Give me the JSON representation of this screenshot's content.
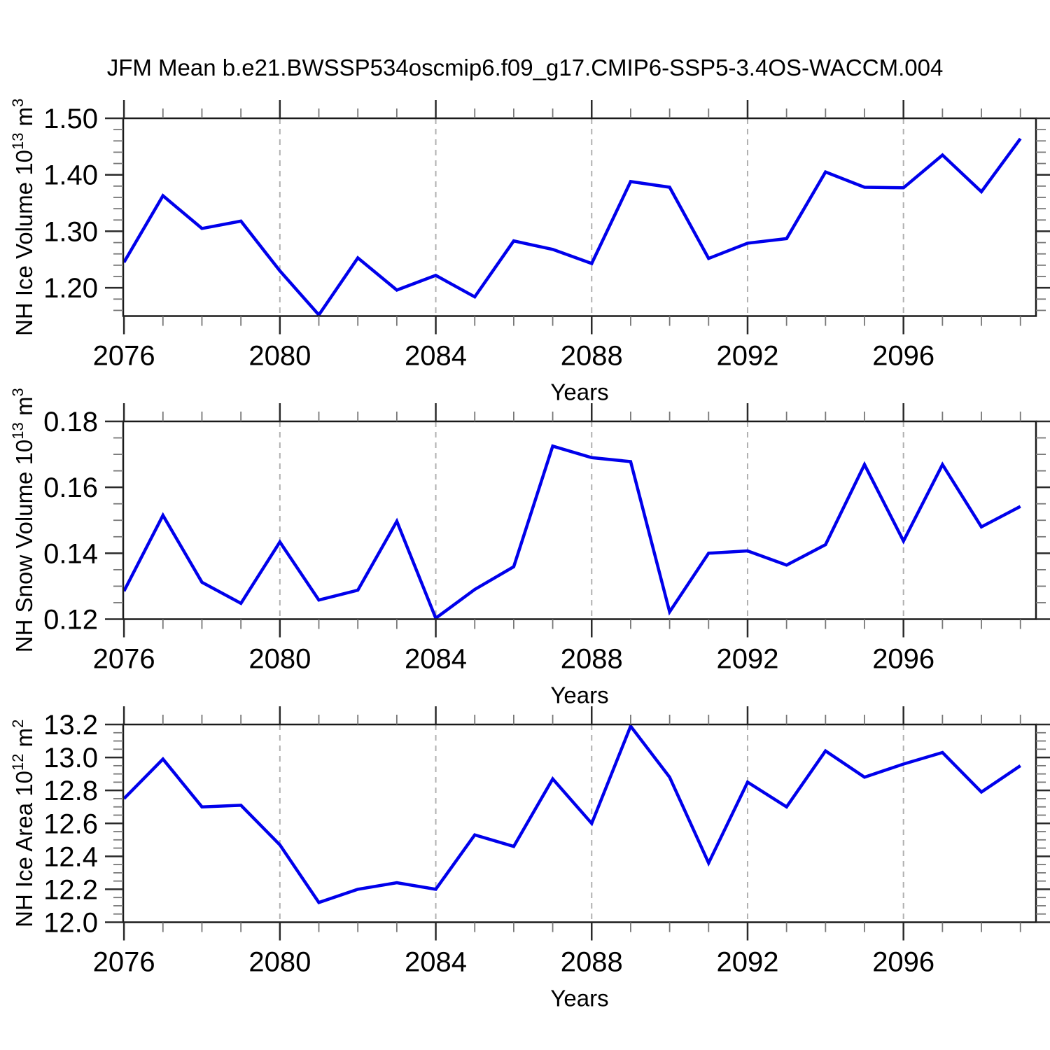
{
  "title": "JFM Mean b.e21.BWSSP534oscmip6.f09_g17.CMIP6-SSP5-3.4OS-WACCM.004",
  "colors": {
    "line": "#0000EB",
    "axis": "#1a1a1a",
    "tick_major": "#2a2a2a",
    "tick_minor": "#777777",
    "grid": "#b0b0b0",
    "text": "#000000",
    "background": "#ffffff"
  },
  "chart_data": [
    {
      "type": "line",
      "id": "nh-ice-volume",
      "ylabel": "NH Ice Volume 10^13 m^3",
      "ylabel_segments": [
        {
          "text": "NH Ice Volume 10",
          "sup": false
        },
        {
          "text": "13",
          "sup": true
        },
        {
          "text": " m",
          "sup": false
        },
        {
          "text": "3",
          "sup": true
        }
      ],
      "xlabel": "Years",
      "xlim": [
        2075.98,
        2099.4
      ],
      "ylim": [
        1.15,
        1.5
      ],
      "x_major_ticks": [
        2076,
        2080,
        2084,
        2088,
        2092,
        2096
      ],
      "x_tick_labels": [
        "2076",
        "2080",
        "2084",
        "2088",
        "2092",
        "2096"
      ],
      "x_minor_step": 1,
      "y_major_ticks": [
        1.5,
        1.4,
        1.3,
        1.2
      ],
      "y_tick_labels": [
        "1.50",
        "1.40",
        "1.30",
        "1.20"
      ],
      "y_minor_step": 0.02,
      "grid_x": [
        2080,
        2084,
        2088,
        2092,
        2096
      ],
      "grid_dashed": true,
      "x": [
        2076,
        2077,
        2078,
        2079,
        2080,
        2081,
        2082,
        2083,
        2084,
        2085,
        2086,
        2087,
        2088,
        2089,
        2090,
        2091,
        2092,
        2093,
        2094,
        2095,
        2096,
        2097,
        2098,
        2099
      ],
      "y": [
        1.245,
        1.363,
        1.305,
        1.318,
        1.23,
        1.152,
        1.253,
        1.196,
        1.222,
        1.184,
        1.283,
        1.268,
        1.243,
        1.388,
        1.378,
        1.252,
        1.279,
        1.287,
        1.405,
        1.378,
        1.377,
        1.435,
        1.37,
        1.464
      ]
    },
    {
      "type": "line",
      "id": "nh-snow-volume",
      "ylabel": "NH Snow Volume 10^13 m^3",
      "ylabel_segments": [
        {
          "text": "NH Snow Volume 10",
          "sup": false
        },
        {
          "text": "13",
          "sup": true
        },
        {
          "text": " m",
          "sup": false
        },
        {
          "text": "3",
          "sup": true
        }
      ],
      "xlabel": "Years",
      "xlim": [
        2075.98,
        2099.4
      ],
      "ylim": [
        0.12,
        0.18
      ],
      "x_major_ticks": [
        2076,
        2080,
        2084,
        2088,
        2092,
        2096
      ],
      "x_tick_labels": [
        "2076",
        "2080",
        "2084",
        "2088",
        "2092",
        "2096"
      ],
      "x_minor_step": 1,
      "y_major_ticks": [
        0.18,
        0.16,
        0.14,
        0.12
      ],
      "y_tick_labels": [
        "0.18",
        "0.16",
        "0.14",
        "0.12"
      ],
      "y_minor_step": 0.005,
      "grid_x": [
        2080,
        2084,
        2088,
        2092,
        2096
      ],
      "grid_dashed": true,
      "x": [
        2076,
        2077,
        2078,
        2079,
        2080,
        2081,
        2082,
        2083,
        2084,
        2085,
        2086,
        2087,
        2088,
        2089,
        2090,
        2091,
        2092,
        2093,
        2094,
        2095,
        2096,
        2097,
        2098,
        2099
      ],
      "y": [
        0.1285,
        0.1515,
        0.1312,
        0.1248,
        0.1434,
        0.1258,
        0.1288,
        0.1497,
        0.1203,
        0.129,
        0.1359,
        0.1725,
        0.169,
        0.1678,
        0.1222,
        0.14,
        0.1407,
        0.1364,
        0.1426,
        0.1669,
        0.1437,
        0.1669,
        0.148,
        0.1542
      ]
    },
    {
      "type": "line",
      "id": "nh-ice-area",
      "ylabel": "NH Ice Area 10^12 m^2",
      "ylabel_segments": [
        {
          "text": "NH Ice Area 10",
          "sup": false
        },
        {
          "text": "12",
          "sup": true
        },
        {
          "text": " m",
          "sup": false
        },
        {
          "text": "2",
          "sup": true
        }
      ],
      "xlabel": "Years",
      "xlim": [
        2075.98,
        2099.4
      ],
      "ylim": [
        12.0,
        13.2
      ],
      "x_major_ticks": [
        2076,
        2080,
        2084,
        2088,
        2092,
        2096
      ],
      "x_tick_labels": [
        "2076",
        "2080",
        "2084",
        "2088",
        "2092",
        "2096"
      ],
      "x_minor_step": 1,
      "y_major_ticks": [
        13.2,
        13.0,
        12.8,
        12.6,
        12.4,
        12.2,
        12.0
      ],
      "y_tick_labels": [
        "13.2",
        "13.0",
        "12.8",
        "12.6",
        "12.4",
        "12.2",
        "12.0"
      ],
      "y_minor_step": 0.05,
      "grid_x": [
        2080,
        2084,
        2088,
        2092,
        2096
      ],
      "grid_dashed": true,
      "x": [
        2076,
        2077,
        2078,
        2079,
        2080,
        2081,
        2082,
        2083,
        2084,
        2085,
        2086,
        2087,
        2088,
        2089,
        2090,
        2091,
        2092,
        2093,
        2094,
        2095,
        2096,
        2097,
        2098,
        2099
      ],
      "y": [
        12.75,
        12.99,
        12.7,
        12.71,
        12.47,
        12.12,
        12.2,
        12.24,
        12.2,
        12.53,
        12.46,
        12.87,
        12.6,
        13.19,
        12.88,
        12.36,
        12.85,
        12.7,
        13.04,
        12.88,
        12.96,
        13.03,
        12.79,
        12.95
      ]
    }
  ]
}
